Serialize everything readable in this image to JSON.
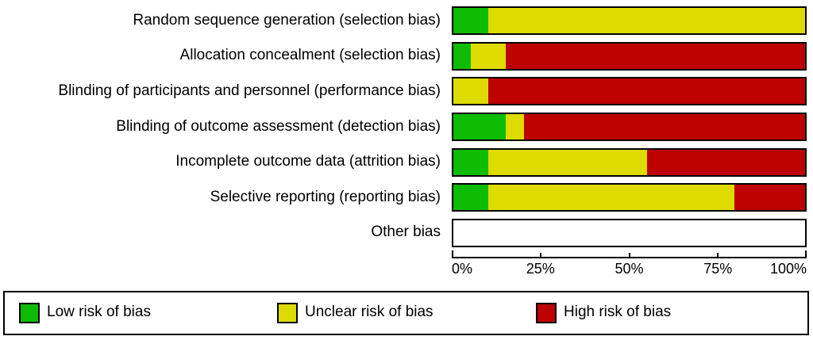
{
  "chart_data": {
    "type": "bar",
    "variant": "horizontal-stacked-percentage",
    "title": "",
    "xlabel": "",
    "ylabel": "",
    "xlim": [
      0,
      100
    ],
    "x_ticks": [
      "0%",
      "25%",
      "50%",
      "75%",
      "100%"
    ],
    "grid": false,
    "legend_position": "bottom",
    "categories": [
      "Random sequence generation (selection bias)",
      "Allocation concealment (selection bias)",
      "Blinding of participants and personnel (performance bias)",
      "Blinding of outcome assessment (detection bias)",
      "Incomplete outcome data (attrition bias)",
      "Selective reporting (reporting bias)",
      "Other bias"
    ],
    "series": [
      {
        "key": "low",
        "name": "Low risk of bias",
        "color": "#0dbc00",
        "values": [
          10,
          5,
          0,
          15,
          10,
          10,
          0
        ]
      },
      {
        "key": "unclear",
        "name": "Unclear risk of bias",
        "color": "#dedb00",
        "values": [
          90,
          10,
          10,
          5,
          45,
          70,
          0
        ]
      },
      {
        "key": "high",
        "name": "High risk of bias",
        "color": "#bd0000",
        "values": [
          0,
          85,
          90,
          80,
          45,
          20,
          0
        ]
      }
    ]
  },
  "colors": {
    "bar_border": "#000000",
    "empty_bar_fill": "#ffffff",
    "axis": "#000000",
    "text": "#000000"
  }
}
